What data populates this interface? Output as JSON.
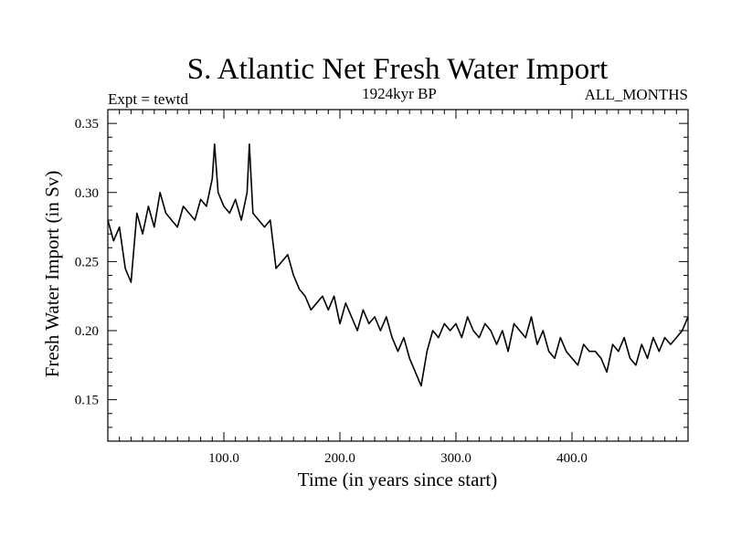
{
  "chart_data": {
    "type": "line",
    "title": "S. Atlantic Net Fresh Water Import",
    "left_label": "Expt = tewtd",
    "center_label": "1924kyr BP",
    "right_label": "ALL_MONTHS",
    "xlabel": "Time (in years since start)",
    "ylabel": "Fresh Water Import (in Sv)",
    "xlim": [
      0,
      500
    ],
    "ylim": [
      0.12,
      0.36
    ],
    "xticks": [
      100,
      200,
      300,
      400
    ],
    "xtick_labels": [
      "100.0",
      "200.0",
      "300.0",
      "400.0"
    ],
    "yticks": [
      0.15,
      0.2,
      0.25,
      0.3,
      0.35
    ],
    "ytick_labels": [
      "0.15",
      "0.20",
      "0.25",
      "0.30",
      "0.35"
    ],
    "grid": false,
    "series": [
      {
        "name": "Net Fresh Water Import",
        "x": [
          0,
          5,
          10,
          15,
          20,
          25,
          30,
          35,
          40,
          45,
          50,
          55,
          60,
          65,
          70,
          75,
          80,
          85,
          90,
          92,
          95,
          100,
          105,
          110,
          115,
          120,
          122,
          125,
          130,
          135,
          140,
          145,
          150,
          155,
          160,
          165,
          170,
          175,
          180,
          185,
          190,
          195,
          200,
          205,
          210,
          215,
          220,
          225,
          230,
          235,
          240,
          245,
          250,
          255,
          260,
          265,
          270,
          275,
          280,
          285,
          290,
          295,
          300,
          305,
          310,
          315,
          320,
          325,
          330,
          335,
          340,
          345,
          350,
          355,
          360,
          365,
          370,
          375,
          380,
          385,
          390,
          395,
          400,
          405,
          410,
          415,
          420,
          425,
          430,
          435,
          440,
          445,
          450,
          455,
          460,
          465,
          470,
          475,
          480,
          485,
          490,
          495,
          500
        ],
        "values": [
          0.28,
          0.265,
          0.275,
          0.245,
          0.235,
          0.285,
          0.27,
          0.29,
          0.275,
          0.3,
          0.285,
          0.28,
          0.275,
          0.29,
          0.285,
          0.28,
          0.295,
          0.29,
          0.31,
          0.335,
          0.3,
          0.29,
          0.285,
          0.295,
          0.28,
          0.3,
          0.335,
          0.285,
          0.28,
          0.275,
          0.28,
          0.245,
          0.25,
          0.255,
          0.24,
          0.23,
          0.225,
          0.215,
          0.22,
          0.225,
          0.215,
          0.225,
          0.205,
          0.22,
          0.21,
          0.2,
          0.215,
          0.205,
          0.21,
          0.2,
          0.21,
          0.195,
          0.185,
          0.195,
          0.18,
          0.17,
          0.16,
          0.185,
          0.2,
          0.195,
          0.205,
          0.2,
          0.205,
          0.195,
          0.21,
          0.2,
          0.195,
          0.205,
          0.2,
          0.19,
          0.2,
          0.185,
          0.205,
          0.2,
          0.195,
          0.21,
          0.19,
          0.2,
          0.185,
          0.18,
          0.195,
          0.185,
          0.18,
          0.175,
          0.19,
          0.185,
          0.185,
          0.18,
          0.17,
          0.19,
          0.185,
          0.195,
          0.18,
          0.175,
          0.19,
          0.18,
          0.195,
          0.185,
          0.195,
          0.19,
          0.195,
          0.2,
          0.21
        ]
      }
    ]
  }
}
